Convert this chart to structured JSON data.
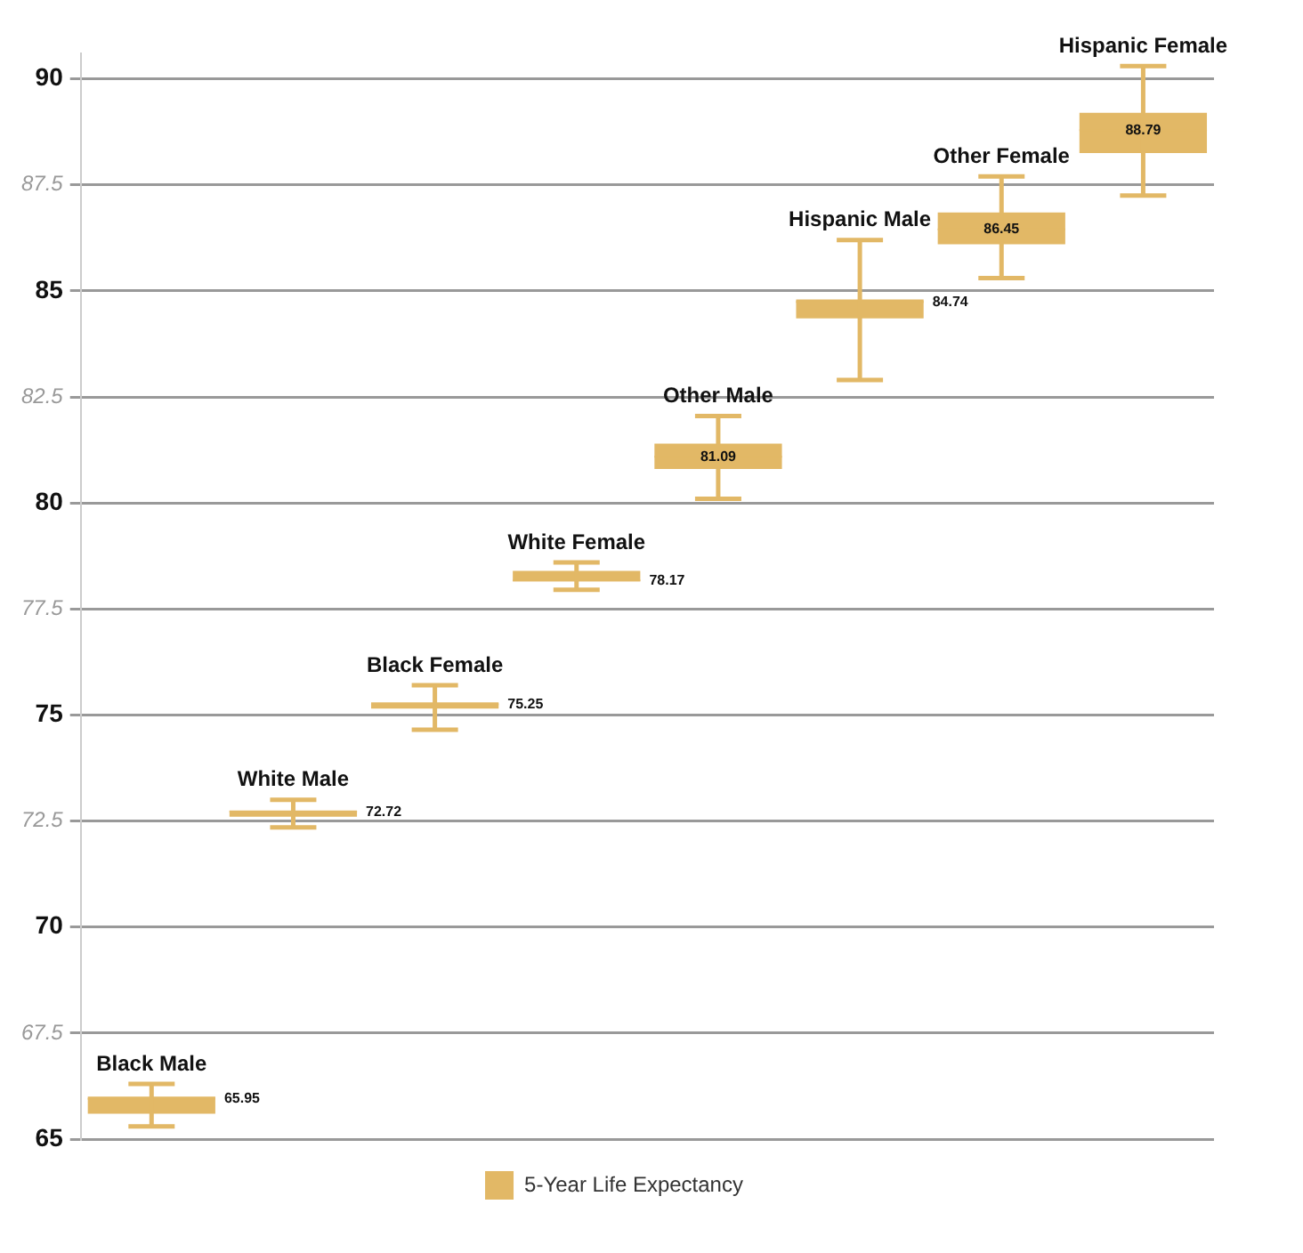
{
  "chart_data": {
    "type": "box",
    "categories": [
      "Black Male",
      "White Male",
      "Black Female",
      "White Female",
      "Other Male",
      "Hispanic Male",
      "Other Female",
      "Hispanic Female"
    ],
    "series": [
      {
        "name": "5-Year Life Expectancy",
        "color": "#e2b866",
        "value_labels": [
          "65.95",
          "72.72",
          "75.25",
          "78.17",
          "81.09",
          "84.74",
          "86.45",
          "88.79"
        ],
        "boxes": [
          {
            "low": 65.3,
            "q1": 65.6,
            "median": 65.95,
            "q3": 66.0,
            "high": 66.3
          },
          {
            "low": 72.35,
            "q1": 72.6,
            "median": 72.72,
            "q3": 72.75,
            "high": 73.0
          },
          {
            "low": 74.65,
            "q1": 75.15,
            "median": 75.25,
            "q3": 75.3,
            "high": 75.7
          },
          {
            "low": 77.95,
            "q1": 78.15,
            "median": 78.17,
            "q3": 78.4,
            "high": 78.6
          },
          {
            "low": 80.1,
            "q1": 80.8,
            "median": 81.09,
            "q3": 81.4,
            "high": 82.05
          },
          {
            "low": 82.9,
            "q1": 84.35,
            "median": 84.74,
            "q3": 84.8,
            "high": 86.2
          },
          {
            "low": 85.3,
            "q1": 86.1,
            "median": 86.45,
            "q3": 86.85,
            "high": 87.7
          },
          {
            "low": 87.25,
            "q1": 88.25,
            "median": 88.79,
            "q3": 89.2,
            "high": 90.3
          }
        ]
      }
    ],
    "ylim": [
      65,
      90.6
    ],
    "yticks": [
      65,
      67.5,
      70,
      72.5,
      75,
      77.5,
      80,
      82.5,
      85,
      87.5,
      90
    ],
    "grid": "y",
    "legend": "bottom",
    "tick_labels": "y"
  }
}
